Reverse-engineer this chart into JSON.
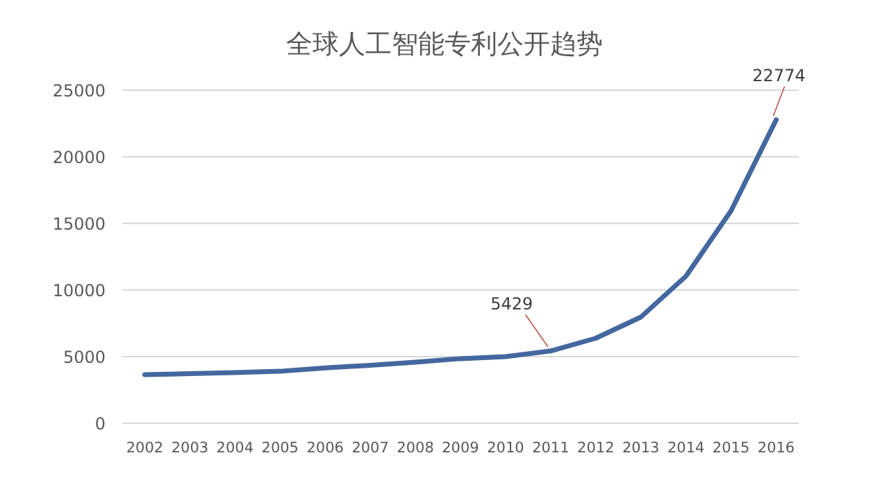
{
  "chart_data": {
    "type": "line",
    "title": "全球人工智能专利公开趋势",
    "categories": [
      "2002",
      "2003",
      "2004",
      "2005",
      "2006",
      "2007",
      "2008",
      "2009",
      "2010",
      "2011",
      "2012",
      "2013",
      "2014",
      "2015",
      "2016"
    ],
    "series": [
      {
        "color": "#44679f",
        "values": [
          3650,
          3720,
          3800,
          3900,
          4150,
          4350,
          4580,
          4850,
          5000,
          5429,
          6380,
          7970,
          11040,
          15950,
          22774
        ],
        "value_labels": [
          null,
          null,
          null,
          null,
          null,
          null,
          null,
          null,
          null,
          "5429",
          null,
          null,
          null,
          null,
          "22774"
        ]
      }
    ],
    "ylim": [
      0,
      25000
    ],
    "yticks": [
      0,
      5000,
      10000,
      15000,
      20000,
      25000
    ],
    "grid": "y"
  }
}
